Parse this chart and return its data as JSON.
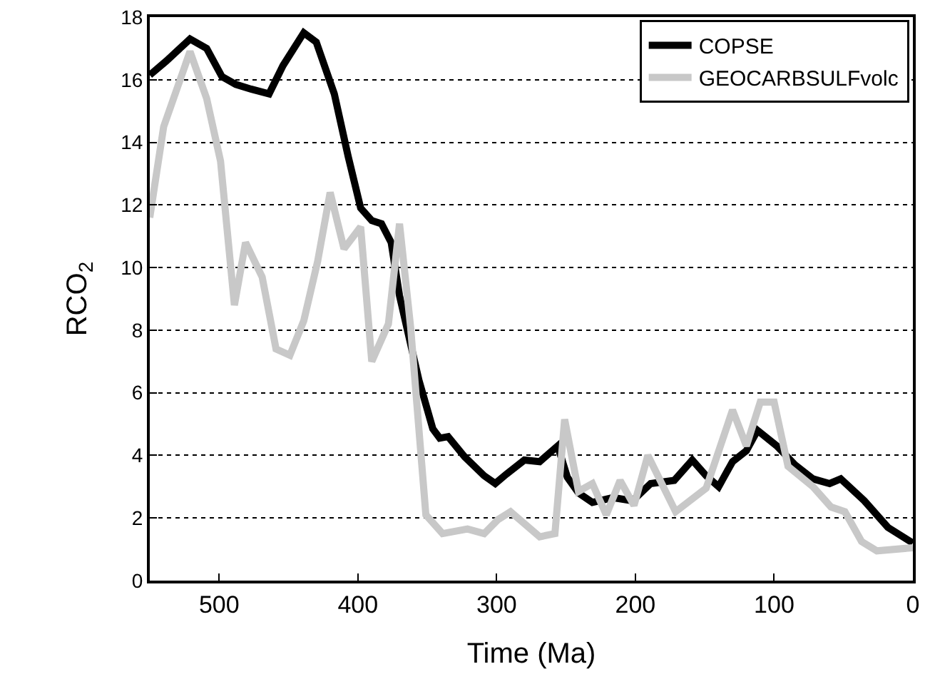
{
  "chart_data": {
    "type": "line",
    "xlabel": "Time (Ma)",
    "ylabel": "RCO$_{2}$",
    "xlim": [
      550,
      0
    ],
    "xticks": [
      500,
      400,
      300,
      200,
      100,
      0
    ],
    "ylim": [
      0,
      18
    ],
    "yticks": [
      0,
      2,
      4,
      6,
      8,
      10,
      12,
      14,
      16,
      18
    ],
    "grid": "y",
    "legend": "top right",
    "line_style": "solid",
    "marker": "none",
    "series": [
      {
        "name": "COPSE",
        "color": "#000000",
        "x": [
          550,
          538,
          521,
          509,
          498,
          488,
          477,
          464,
          454,
          439,
          430,
          417,
          407,
          398,
          390,
          383,
          376,
          370,
          356,
          346,
          341,
          335,
          323,
          309,
          301,
          293,
          280,
          269,
          256,
          249,
          241,
          231,
          216,
          202,
          189,
          172,
          159,
          149,
          140,
          130,
          120,
          112,
          98,
          85,
          72,
          60,
          52,
          35,
          18,
          0
        ],
        "values": [
          16.15,
          16.6,
          17.3,
          17.0,
          16.1,
          15.85,
          15.7,
          15.55,
          16.45,
          17.5,
          17.2,
          15.55,
          13.55,
          11.9,
          11.5,
          11.4,
          10.8,
          9.1,
          6.4,
          4.85,
          4.55,
          4.6,
          3.95,
          3.35,
          3.1,
          3.4,
          3.85,
          3.8,
          4.3,
          3.3,
          2.8,
          2.5,
          2.65,
          2.55,
          3.1,
          3.2,
          3.85,
          3.35,
          3.0,
          3.8,
          4.15,
          4.8,
          4.3,
          3.7,
          3.25,
          3.1,
          3.25,
          2.55,
          1.7,
          1.2
        ]
      },
      {
        "name": "GEOCARBSULFvolc",
        "color": "#c8c8c8",
        "x": [
          550,
          540,
          521,
          509,
          499,
          489,
          481,
          469,
          459,
          449,
          439,
          429,
          420,
          410,
          398,
          390,
          378,
          370,
          362,
          351,
          339,
          321,
          309,
          299,
          290,
          269,
          258,
          251,
          241,
          231,
          221,
          211,
          201,
          191,
          171,
          149,
          130,
          120,
          110,
          100,
          90,
          72,
          59,
          49,
          37,
          26,
          0
        ],
        "values": [
          11.6,
          14.5,
          16.9,
          15.4,
          13.4,
          8.8,
          10.8,
          9.7,
          7.4,
          7.2,
          8.3,
          10.2,
          12.4,
          10.6,
          11.3,
          7.0,
          8.2,
          11.4,
          8.1,
          2.1,
          1.5,
          1.65,
          1.5,
          1.95,
          2.2,
          1.4,
          1.5,
          5.15,
          2.85,
          3.1,
          2.1,
          3.2,
          2.4,
          4.0,
          2.2,
          2.95,
          5.45,
          4.3,
          5.7,
          5.7,
          3.65,
          3.0,
          2.35,
          2.2,
          1.25,
          0.95,
          1.05
        ]
      }
    ]
  }
}
